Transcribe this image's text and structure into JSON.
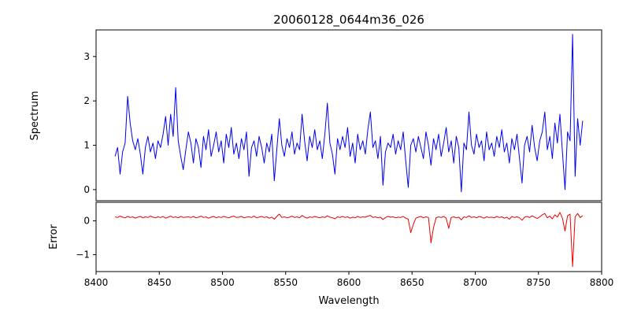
{
  "chart_data": {
    "type": "line",
    "title": "20060128_0644m36_026",
    "xlabel": "Wavelength",
    "xlim": [
      8400,
      8800
    ],
    "xticks": [
      8400,
      8450,
      8500,
      8550,
      8600,
      8650,
      8700,
      8750,
      8800
    ],
    "x": [
      8415,
      8417,
      8419,
      8421,
      8423,
      8425,
      8427,
      8429,
      8431,
      8433,
      8435,
      8437,
      8439,
      8441,
      8443,
      8445,
      8447,
      8449,
      8451,
      8453,
      8455,
      8457,
      8459,
      8461,
      8463,
      8465,
      8467,
      8469,
      8471,
      8473,
      8475,
      8477,
      8479,
      8481,
      8483,
      8485,
      8487,
      8489,
      8491,
      8493,
      8495,
      8497,
      8499,
      8501,
      8503,
      8505,
      8507,
      8509,
      8511,
      8513,
      8515,
      8517,
      8519,
      8521,
      8523,
      8525,
      8527,
      8529,
      8531,
      8533,
      8535,
      8537,
      8539,
      8541,
      8543,
      8545,
      8547,
      8549,
      8551,
      8553,
      8555,
      8557,
      8559,
      8561,
      8563,
      8565,
      8567,
      8569,
      8571,
      8573,
      8575,
      8577,
      8579,
      8581,
      8583,
      8585,
      8587,
      8589,
      8591,
      8593,
      8595,
      8597,
      8599,
      8601,
      8603,
      8605,
      8607,
      8609,
      8611,
      8613,
      8615,
      8617,
      8619,
      8621,
      8623,
      8625,
      8627,
      8629,
      8631,
      8633,
      8635,
      8637,
      8639,
      8641,
      8643,
      8645,
      8647,
      8649,
      8651,
      8653,
      8655,
      8657,
      8659,
      8661,
      8663,
      8665,
      8667,
      8669,
      8671,
      8673,
      8675,
      8677,
      8679,
      8681,
      8683,
      8685,
      8687,
      8689,
      8691,
      8693,
      8695,
      8697,
      8699,
      8701,
      8703,
      8705,
      8707,
      8709,
      8711,
      8713,
      8715,
      8717,
      8719,
      8721,
      8723,
      8725,
      8727,
      8729,
      8731,
      8733,
      8735,
      8737,
      8739,
      8741,
      8743,
      8745,
      8747,
      8749,
      8751,
      8753,
      8755,
      8757,
      8759,
      8761,
      8763,
      8765,
      8767,
      8769,
      8771,
      8773,
      8775,
      8777,
      8779,
      8781,
      8783,
      8785
    ],
    "panels": [
      {
        "ylabel": "Spectrum",
        "color": "#0000ee",
        "ylim": [
          -0.25,
          3.6
        ],
        "yticks": [
          0,
          1,
          2,
          3
        ],
        "values": [
          0.75,
          0.95,
          0.35,
          0.85,
          1.05,
          2.1,
          1.5,
          1.1,
          0.9,
          1.15,
          0.8,
          0.35,
          0.95,
          1.2,
          0.85,
          1.05,
          0.7,
          1.1,
          0.95,
          1.25,
          1.65,
          1.0,
          1.7,
          1.2,
          2.3,
          1.1,
          0.75,
          0.45,
          0.9,
          1.3,
          1.05,
          0.6,
          1.15,
          0.95,
          0.5,
          1.2,
          0.9,
          1.35,
          0.75,
          1.0,
          1.3,
          0.85,
          1.1,
          0.6,
          1.25,
          0.95,
          1.4,
          0.8,
          1.05,
          0.7,
          1.15,
          0.9,
          1.3,
          0.3,
          0.95,
          1.1,
          0.75,
          1.2,
          0.95,
          0.6,
          1.05,
          0.85,
          1.25,
          0.2,
          0.9,
          1.6,
          1.0,
          0.75,
          1.15,
          0.95,
          1.3,
          0.8,
          1.05,
          0.9,
          1.7,
          1.1,
          0.65,
          1.2,
          0.95,
          1.35,
          0.9,
          1.1,
          0.7,
          1.25,
          1.95,
          1.05,
          0.8,
          0.35,
          1.15,
          0.9,
          1.2,
          0.95,
          1.4,
          0.75,
          1.05,
          0.6,
          1.25,
          0.9,
          1.1,
          0.8,
          1.35,
          1.75,
          0.95,
          1.1,
          0.7,
          1.2,
          0.1,
          0.85,
          1.05,
          0.95,
          1.25,
          0.8,
          1.1,
          0.9,
          1.3,
          0.65,
          0.05,
          1.0,
          1.15,
          0.85,
          1.2,
          0.95,
          0.7,
          1.3,
          1.0,
          0.55,
          1.15,
          0.9,
          1.25,
          0.75,
          1.05,
          1.4,
          0.85,
          1.1,
          0.6,
          1.2,
          0.95,
          -0.05,
          1.05,
          0.9,
          1.75,
          1.0,
          0.8,
          1.25,
          0.95,
          1.1,
          0.65,
          1.3,
          0.9,
          1.05,
          0.75,
          1.2,
          0.95,
          1.35,
          0.85,
          1.05,
          0.6,
          1.15,
          0.9,
          1.25,
          0.7,
          0.15,
          1.0,
          1.2,
          0.85,
          1.45,
          0.95,
          0.65,
          1.1,
          1.3,
          1.75,
          0.9,
          1.2,
          0.7,
          1.5,
          1.05,
          1.7,
          0.85,
          0.0,
          1.3,
          1.1,
          3.5,
          0.3,
          1.6,
          1.0,
          1.55
        ]
      },
      {
        "ylabel": "Error",
        "color": "#ee0000",
        "ylim": [
          -1.5,
          0.55
        ],
        "yticks": [
          -1,
          0
        ],
        "values": [
          0.12,
          0.1,
          0.14,
          0.11,
          0.09,
          0.13,
          0.1,
          0.12,
          0.08,
          0.11,
          0.13,
          0.09,
          0.12,
          0.1,
          0.14,
          0.11,
          0.09,
          0.12,
          0.1,
          0.13,
          0.08,
          0.11,
          0.14,
          0.1,
          0.12,
          0.09,
          0.13,
          0.1,
          0.11,
          0.12,
          0.1,
          0.13,
          0.09,
          0.11,
          0.14,
          0.1,
          0.12,
          0.08,
          0.11,
          0.13,
          0.09,
          0.12,
          0.1,
          0.13,
          0.11,
          0.09,
          0.12,
          0.14,
          0.1,
          0.11,
          0.13,
          0.09,
          0.11,
          0.12,
          0.1,
          0.14,
          0.09,
          0.11,
          0.13,
          0.1,
          0.12,
          0.08,
          0.11,
          0.05,
          0.13,
          0.2,
          0.1,
          0.12,
          0.09,
          0.11,
          0.14,
          0.1,
          0.12,
          0.09,
          0.16,
          0.11,
          0.08,
          0.12,
          0.1,
          0.13,
          0.11,
          0.09,
          0.12,
          0.1,
          0.15,
          0.11,
          0.09,
          0.06,
          0.12,
          0.1,
          0.13,
          0.1,
          0.12,
          0.08,
          0.11,
          0.09,
          0.13,
          0.1,
          0.12,
          0.11,
          0.14,
          0.16,
          0.1,
          0.12,
          0.09,
          0.11,
          0.04,
          0.1,
          0.13,
          0.11,
          0.12,
          0.09,
          0.11,
          0.1,
          0.13,
          0.08,
          0.05,
          -0.35,
          -0.1,
          0.08,
          0.11,
          0.13,
          0.09,
          0.12,
          0.1,
          -0.65,
          -0.2,
          0.09,
          0.12,
          0.1,
          0.13,
          0.08,
          -0.22,
          0.1,
          0.12,
          0.09,
          0.11,
          0.03,
          0.12,
          0.1,
          0.15,
          0.1,
          0.12,
          0.09,
          0.13,
          0.11,
          0.08,
          0.12,
          0.1,
          0.11,
          0.09,
          0.13,
          0.1,
          0.12,
          0.08,
          0.11,
          0.05,
          0.13,
          0.1,
          0.12,
          0.09,
          0.02,
          0.11,
          0.13,
          0.1,
          0.15,
          0.11,
          0.07,
          0.12,
          0.18,
          0.22,
          0.09,
          0.14,
          0.06,
          0.18,
          0.11,
          0.25,
          0.08,
          -0.3,
          0.15,
          0.2,
          -1.35,
          0.12,
          0.22,
          0.1,
          0.15
        ]
      }
    ]
  }
}
